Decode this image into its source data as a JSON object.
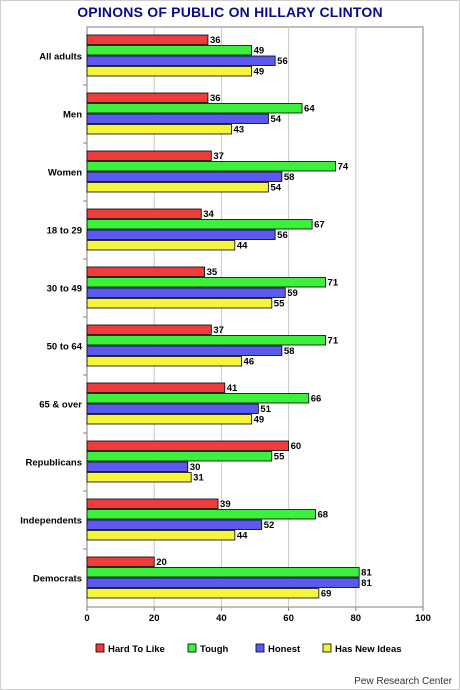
{
  "title": "OPINONS OF PUBLIC ON HILLARY CLINTON",
  "source": "Pew Research Center",
  "chart_data": {
    "type": "bar",
    "orientation": "horizontal",
    "title": "OPINONS OF PUBLIC ON HILLARY CLINTON",
    "xlabel": "",
    "ylabel": "",
    "xlim": [
      0,
      100
    ],
    "x_ticks": [
      0,
      20,
      40,
      60,
      80,
      100
    ],
    "grid": "vertical",
    "legend_position": "bottom",
    "categories": [
      "All adults",
      "Men",
      "Women",
      "18 to 29",
      "30 to 49",
      "50 to 64",
      "65 & over",
      "Republicans",
      "Independents",
      "Democrats"
    ],
    "series": [
      {
        "name": "Hard To Like",
        "color": "#f03c3c",
        "values": [
          36,
          36,
          37,
          34,
          35,
          37,
          41,
          60,
          39,
          20
        ]
      },
      {
        "name": "Tough",
        "color": "#3cf03c",
        "values": [
          49,
          64,
          74,
          67,
          71,
          71,
          66,
          55,
          68,
          81
        ]
      },
      {
        "name": "Honest",
        "color": "#5a5af0",
        "values": [
          56,
          54,
          58,
          56,
          59,
          58,
          51,
          30,
          52,
          81
        ]
      },
      {
        "name": "Has New Ideas",
        "color": "#f5f53c",
        "values": [
          49,
          43,
          54,
          44,
          55,
          46,
          49,
          31,
          44,
          69
        ]
      }
    ]
  }
}
